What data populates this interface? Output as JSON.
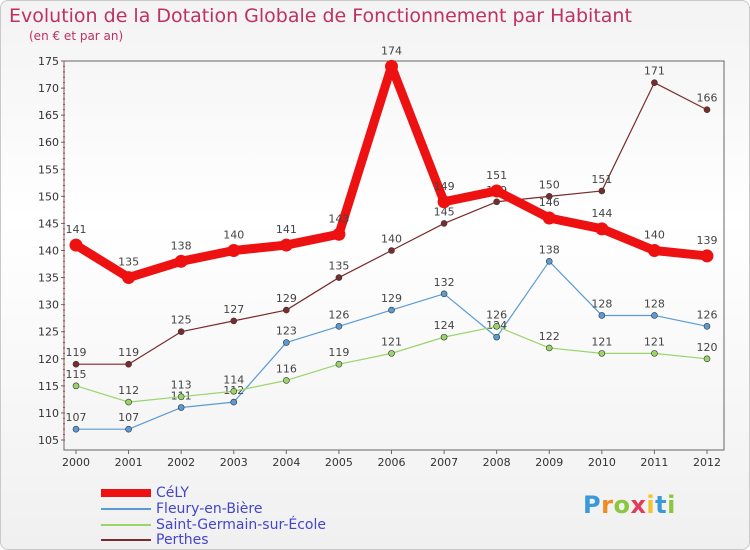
{
  "title": "Evolution de la Dotation Globale de Fonctionnement par Habitant",
  "subtitle": "(en € et par an)",
  "logo": {
    "text": "Proxiti",
    "letter_colors": [
      "#3a9ad9",
      "#f28a22",
      "#8cc63f",
      "#e23c5a",
      "#f2c230",
      "#3a9ad9",
      "#8cc63f"
    ]
  },
  "chart_data": {
    "type": "line",
    "x": [
      "2000",
      "2001",
      "2002",
      "2003",
      "2004",
      "2005",
      "2006",
      "2007",
      "2008",
      "2009",
      "2010",
      "2011",
      "2012"
    ],
    "ylim": [
      105,
      175
    ],
    "yticks": [
      105,
      110,
      115,
      120,
      125,
      130,
      135,
      140,
      145,
      150,
      155,
      160,
      165,
      170,
      175
    ],
    "grid": false,
    "legend_position": "bottom-left",
    "series": [
      {
        "name": "CéLY",
        "color": "#ee1111",
        "values": [
          141,
          135,
          138,
          140,
          141,
          143,
          174,
          149,
          151,
          146,
          144,
          140,
          139
        ]
      },
      {
        "name": "Fleury-en-Bière",
        "color": "#5b9bd5",
        "values": [
          107,
          107,
          111,
          112,
          123,
          126,
          129,
          132,
          124,
          138,
          128,
          128,
          126
        ]
      },
      {
        "name": "Saint-Germain-sur-École",
        "color": "#9ad46a",
        "values": [
          115,
          112,
          113,
          114,
          116,
          119,
          121,
          124,
          126,
          122,
          121,
          121,
          120
        ]
      },
      {
        "name": "Perthes",
        "color": "#7a2b2b",
        "values": [
          119,
          119,
          125,
          127,
          129,
          135,
          140,
          145,
          149,
          150,
          151,
          171,
          166
        ]
      }
    ]
  }
}
